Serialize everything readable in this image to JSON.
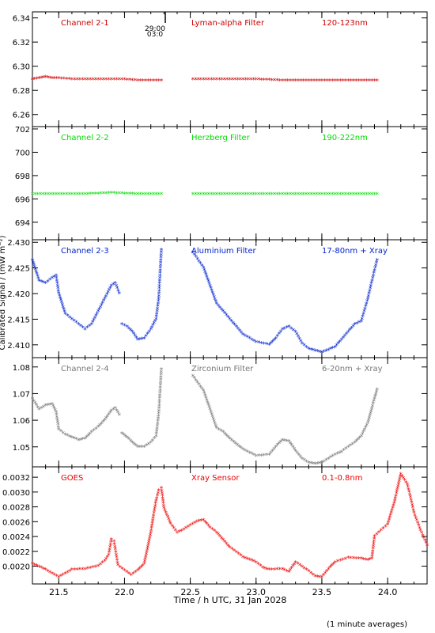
{
  "figure": {
    "xlabel": "Time / h UTC, 31 Jan 2028",
    "ylabel": "Calibrated Signal / (mW m⁻²)",
    "note": "(1 minute averages)",
    "marker_label": "29:00",
    "marker_sub": "03:0"
  },
  "chart_data": [
    {
      "type": "scatter",
      "panel": "Channel 2-1",
      "labels": [
        "Channel 2-1",
        "Lyman-alpha Filter",
        "120-123nm"
      ],
      "color": "#cc0000",
      "xlim": [
        21.3,
        24.3
      ],
      "ylim": [
        6.25,
        6.345
      ],
      "yticks": [
        6.26,
        6.28,
        6.3,
        6.32,
        6.34
      ],
      "ytick_labels": [
        "6.26",
        "6.28",
        "6.30",
        "6.32",
        "6.34"
      ],
      "series": [
        {
          "x": [
            21.3,
            21.35,
            21.4,
            21.45,
            21.5,
            21.6,
            21.7,
            21.8,
            21.9,
            22.0,
            22.1,
            22.2,
            22.28
          ],
          "y": [
            6.289,
            6.29,
            6.291,
            6.29,
            6.29,
            6.289,
            6.289,
            6.289,
            6.289,
            6.289,
            6.288,
            6.288,
            6.288
          ]
        },
        {
          "x": [
            22.52,
            22.6,
            22.8,
            23.0,
            23.2,
            23.4,
            23.6,
            23.8,
            23.92
          ],
          "y": [
            6.289,
            6.289,
            6.289,
            6.289,
            6.288,
            6.288,
            6.288,
            6.288,
            6.288
          ]
        }
      ]
    },
    {
      "type": "scatter",
      "panel": "Channel 2-2",
      "labels": [
        "Channel 2-2",
        "Herzberg Filter",
        "190-222nm"
      ],
      "color": "#00dd00",
      "xlim": [
        21.3,
        24.3
      ],
      "ylim": [
        692.5,
        702.2
      ],
      "yticks": [
        694,
        696,
        698,
        700,
        702
      ],
      "ytick_labels": [
        "694",
        "696",
        "698",
        "700",
        "702"
      ],
      "series": [
        {
          "x": [
            21.3,
            21.5,
            21.7,
            21.9,
            22.1,
            22.28
          ],
          "y": [
            696.4,
            696.4,
            696.4,
            696.5,
            696.4,
            696.4
          ]
        },
        {
          "x": [
            22.52,
            22.7,
            22.9,
            23.1,
            23.3,
            23.5,
            23.7,
            23.92
          ],
          "y": [
            696.4,
            696.4,
            696.4,
            696.4,
            696.4,
            696.4,
            696.4,
            696.4
          ]
        }
      ]
    },
    {
      "type": "scatter",
      "panel": "Channel 2-3",
      "labels": [
        "Channel 2-3",
        "Aluminium Filter",
        "17-80nm + Xray"
      ],
      "color": "#0022cc",
      "xlim": [
        21.3,
        24.3
      ],
      "ylim": [
        2.4075,
        2.4305
      ],
      "yticks": [
        2.41,
        2.415,
        2.42,
        2.425,
        2.43
      ],
      "ytick_labels": [
        "2.410",
        "2.415",
        "2.420",
        "2.425",
        "2.430"
      ],
      "series": [
        {
          "x": [
            21.3,
            21.35,
            21.4,
            21.45,
            21.48,
            21.5,
            21.55,
            21.6,
            21.65,
            21.7,
            21.75,
            21.8,
            21.85,
            21.9,
            21.93,
            21.96
          ],
          "y": [
            2.4265,
            2.4225,
            2.422,
            2.423,
            2.4235,
            2.42,
            2.416,
            2.415,
            2.414,
            2.413,
            2.414,
            2.4165,
            2.419,
            2.4215,
            2.422,
            2.42
          ]
        },
        {
          "x": [
            21.98,
            22.02,
            22.06,
            22.1,
            22.15,
            22.2,
            22.24,
            22.26,
            22.28
          ],
          "y": [
            2.414,
            2.4135,
            2.4125,
            2.411,
            2.4112,
            2.413,
            2.415,
            2.419,
            2.4285
          ]
        },
        {
          "x": [
            22.52,
            22.6,
            22.65,
            22.7,
            22.75,
            22.8,
            22.9,
            23.0,
            23.1,
            23.15,
            23.2,
            23.25,
            23.3,
            23.35,
            23.4,
            23.45,
            23.5,
            23.55,
            23.6,
            23.65,
            23.7,
            23.75,
            23.8,
            23.85,
            23.9,
            23.92
          ],
          "y": [
            2.428,
            2.425,
            2.4215,
            2.418,
            2.4165,
            2.415,
            2.412,
            2.4105,
            2.41,
            2.4112,
            2.413,
            2.4135,
            2.4125,
            2.4102,
            2.4092,
            2.4088,
            2.4085,
            2.409,
            2.4095,
            2.411,
            2.4125,
            2.414,
            2.4145,
            2.419,
            2.4245,
            2.4265
          ]
        }
      ]
    },
    {
      "type": "scatter",
      "panel": "Channel 2-4",
      "labels": [
        "Channel 2-4",
        "Zirconium Filter",
        "6-20nm + Xray"
      ],
      "color": "#777777",
      "xlim": [
        21.3,
        24.3
      ],
      "ylim": [
        1.0425,
        1.0835
      ],
      "yticks": [
        1.05,
        1.06,
        1.07,
        1.08
      ],
      "ytick_labels": [
        "1.05",
        "1.06",
        "1.07",
        "1.08"
      ],
      "series": [
        {
          "x": [
            21.3,
            21.35,
            21.4,
            21.45,
            21.48,
            21.5,
            21.55,
            21.6,
            21.65,
            21.7,
            21.75,
            21.8,
            21.85,
            21.9,
            21.93,
            21.96
          ],
          "y": [
            1.068,
            1.064,
            1.0655,
            1.066,
            1.063,
            1.0565,
            1.0545,
            1.0535,
            1.0525,
            1.053,
            1.0555,
            1.0575,
            1.06,
            1.0635,
            1.0645,
            1.062
          ]
        },
        {
          "x": [
            21.98,
            22.02,
            22.06,
            22.1,
            22.15,
            22.2,
            22.24,
            22.26,
            22.28
          ],
          "y": [
            1.055,
            1.0535,
            1.0515,
            1.05,
            1.05,
            1.0515,
            1.054,
            1.0625,
            1.079
          ]
        },
        {
          "x": [
            22.52,
            22.6,
            22.65,
            22.7,
            22.75,
            22.8,
            22.9,
            23.0,
            23.1,
            23.15,
            23.2,
            23.25,
            23.3,
            23.35,
            23.4,
            23.45,
            23.5,
            23.55,
            23.6,
            23.65,
            23.7,
            23.75,
            23.8,
            23.85,
            23.9,
            23.92
          ],
          "y": [
            1.0765,
            1.071,
            1.064,
            1.057,
            1.0555,
            1.053,
            1.049,
            1.0465,
            1.047,
            1.05,
            1.0525,
            1.052,
            1.0485,
            1.0455,
            1.044,
            1.0435,
            1.044,
            1.0455,
            1.047,
            1.048,
            1.05,
            1.0515,
            1.054,
            1.059,
            1.068,
            1.0715
          ]
        }
      ]
    },
    {
      "type": "scatter",
      "panel": "GOES",
      "labels": [
        "GOES",
        "Xray Sensor",
        "0.1-0.8nm"
      ],
      "color": "#ee0000",
      "xlim": [
        21.3,
        24.3
      ],
      "ylim": [
        0.00176,
        0.00334
      ],
      "yticks": [
        0.002,
        0.0022,
        0.0024,
        0.0026,
        0.0028,
        0.003,
        0.0032
      ],
      "ytick_labels": [
        "0.0020",
        "0.0022",
        "0.0024",
        "0.0026",
        "0.0028",
        "0.0030",
        "0.0032"
      ],
      "series": [
        {
          "x": [
            21.3,
            21.4,
            21.5,
            21.55,
            21.6,
            21.7,
            21.8,
            21.85,
            21.88,
            21.9,
            21.92,
            21.95,
            22.0,
            22.05,
            22.1,
            22.15,
            22.2,
            22.22,
            22.24,
            22.26,
            22.28,
            22.3,
            22.35,
            22.4,
            22.45,
            22.5,
            22.55,
            22.6,
            22.65,
            22.7,
            22.8,
            22.9,
            23.0,
            23.05,
            23.1,
            23.2,
            23.25,
            23.3,
            23.4,
            23.45,
            23.5,
            23.55,
            23.6,
            23.7,
            23.8,
            23.85,
            23.88,
            23.9,
            23.95,
            24.0,
            24.05,
            24.1,
            24.15,
            24.2,
            24.25,
            24.3
          ],
          "y": [
            0.00203,
            0.00195,
            0.00185,
            0.0019,
            0.00195,
            0.00196,
            0.002,
            0.00207,
            0.00215,
            0.00236,
            0.00233,
            0.00201,
            0.00194,
            0.00188,
            0.00194,
            0.00203,
            0.00245,
            0.00268,
            0.00288,
            0.00302,
            0.00305,
            0.00278,
            0.00257,
            0.00245,
            0.00249,
            0.00255,
            0.0026,
            0.00262,
            0.00252,
            0.00245,
            0.00225,
            0.00212,
            0.00205,
            0.00198,
            0.00195,
            0.00196,
            0.00192,
            0.00205,
            0.00193,
            0.00186,
            0.00185,
            0.00196,
            0.00205,
            0.00211,
            0.0021,
            0.00208,
            0.0021,
            0.0024,
            0.00248,
            0.00256,
            0.00285,
            0.00324,
            0.0031,
            0.00272,
            0.00248,
            0.00228
          ]
        }
      ]
    }
  ],
  "x_axis": {
    "ticks": [
      21.5,
      22.0,
      22.5,
      23.0,
      23.5,
      24.0
    ],
    "tick_labels": [
      "21.5",
      "22.0",
      "22.5",
      "23.0",
      "23.5",
      "24.0"
    ]
  }
}
